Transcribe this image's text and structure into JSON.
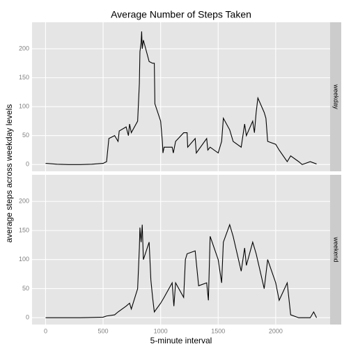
{
  "chart_data": {
    "type": "line",
    "title": "Average Number of Steps Taken",
    "xlabel": "5-minute interval",
    "ylabel": "average steps across weekday levels",
    "xlim": [
      -117.75,
      2472.75
    ],
    "xticks": [
      0,
      500,
      1000,
      1500,
      2000
    ],
    "ylim": [
      -11.7,
      245.8
    ],
    "yticks": [
      0,
      50,
      100,
      150,
      200
    ],
    "grid": true,
    "series": [
      {
        "name": "weekday",
        "color": "#000000",
        "x": [
          0,
          100,
          200,
          300,
          400,
          500,
          530,
          550,
          600,
          630,
          640,
          700,
          720,
          730,
          745,
          800,
          815,
          820,
          830,
          835,
          840,
          850,
          900,
          930,
          945,
          950,
          1000,
          1015,
          1020,
          1030,
          1100,
          1110,
          1130,
          1200,
          1230,
          1235,
          1300,
          1310,
          1400,
          1410,
          1430,
          1500,
          1530,
          1545,
          1600,
          1630,
          1700,
          1730,
          1745,
          1800,
          1815,
          1830,
          1845,
          1900,
          1915,
          1930,
          2000,
          2030,
          2100,
          2130,
          2200,
          2230,
          2300,
          2355
        ],
        "values": [
          2,
          0.5,
          0,
          0,
          0.5,
          2,
          5,
          45,
          50,
          40,
          58,
          65,
          50,
          70,
          55,
          75,
          140,
          195,
          210,
          230,
          200,
          215,
          178,
          175,
          175,
          105,
          75,
          40,
          20,
          30,
          30,
          20,
          40,
          55,
          55,
          30,
          45,
          20,
          45,
          25,
          30,
          20,
          40,
          80,
          60,
          40,
          30,
          70,
          50,
          75,
          55,
          90,
          115,
          90,
          80,
          40,
          35,
          25,
          5,
          15,
          5,
          0,
          5,
          1
        ]
      },
      {
        "name": "weekend",
        "color": "#000000",
        "x": [
          0,
          100,
          200,
          300,
          500,
          530,
          600,
          630,
          700,
          730,
          745,
          800,
          815,
          820,
          830,
          840,
          850,
          900,
          915,
          930,
          945,
          1000,
          1030,
          1100,
          1115,
          1130,
          1200,
          1215,
          1230,
          1300,
          1330,
          1400,
          1415,
          1430,
          1500,
          1530,
          1545,
          1600,
          1630,
          1700,
          1730,
          1745,
          1800,
          1830,
          1900,
          1930,
          2000,
          2030,
          2100,
          2130,
          2200,
          2300,
          2330,
          2355
        ],
        "values": [
          0,
          0,
          0,
          0,
          1,
          3,
          5,
          10,
          20,
          25,
          15,
          50,
          120,
          155,
          130,
          160,
          100,
          130,
          65,
          35,
          10,
          25,
          35,
          60,
          20,
          60,
          35,
          100,
          110,
          115,
          55,
          60,
          30,
          140,
          100,
          60,
          130,
          160,
          140,
          80,
          120,
          90,
          130,
          110,
          50,
          100,
          60,
          30,
          60,
          5,
          0,
          0,
          10,
          0
        ]
      }
    ]
  }
}
